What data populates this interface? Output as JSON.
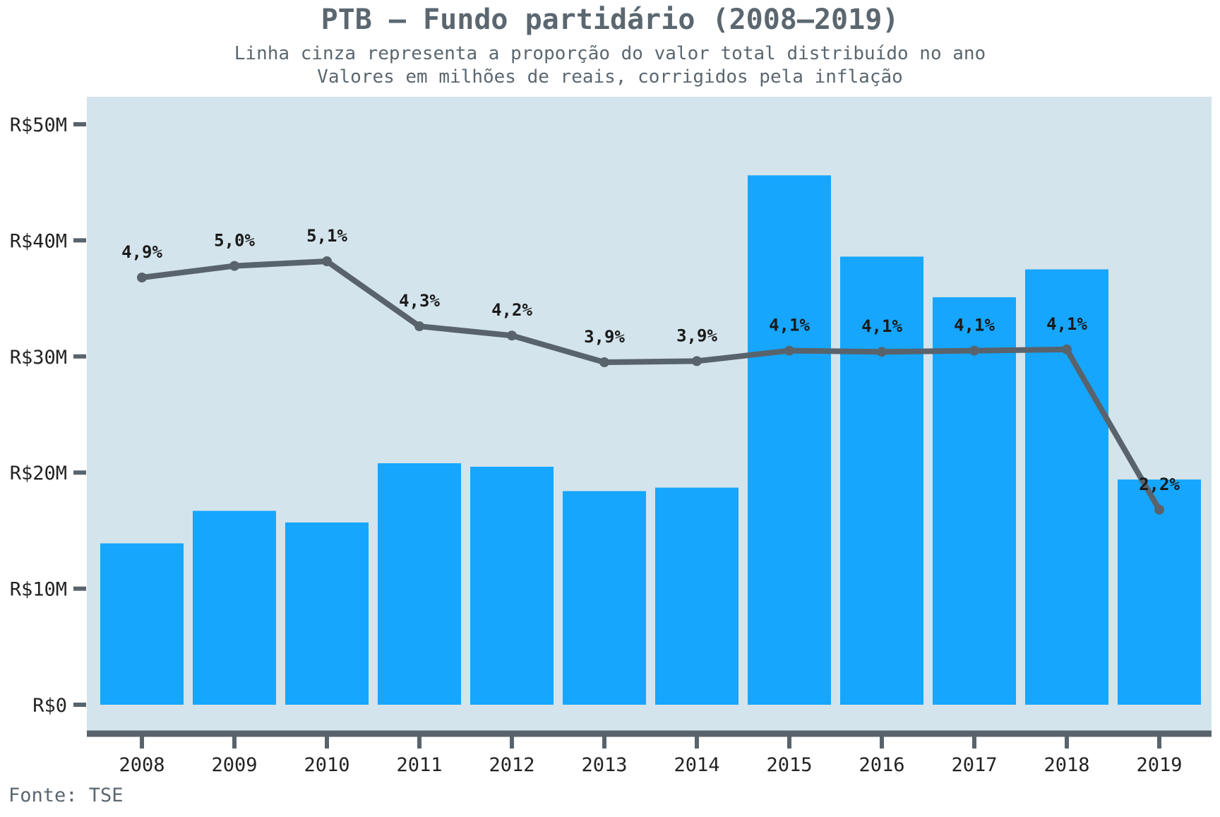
{
  "chart_data": {
    "type": "bar",
    "title": "PTB – Fundo partidário (2008–2019)",
    "subtitle_lines": [
      "Linha cinza representa a proporção do valor total distribuído no ano",
      "Valores em milhões de reais, corrigidos pela inflação"
    ],
    "source": "Fonte: TSE",
    "categories": [
      "2008",
      "2009",
      "2010",
      "2011",
      "2012",
      "2013",
      "2014",
      "2015",
      "2016",
      "2017",
      "2018",
      "2019"
    ],
    "series": [
      {
        "type": "bar",
        "values": [
          13.9,
          16.7,
          15.7,
          20.8,
          20.5,
          18.4,
          18.7,
          45.6,
          38.6,
          35.1,
          37.5,
          19.4
        ],
        "color": "#16a6fd"
      },
      {
        "type": "line",
        "values": [
          4.9,
          5.0,
          5.1,
          4.3,
          4.2,
          3.9,
          3.9,
          4.1,
          4.1,
          4.1,
          4.1,
          2.2
        ],
        "value_labels": [
          "4,9%",
          "5,0%",
          "5,1%",
          "4,3%",
          "4,2%",
          "3,9%",
          "3,9%",
          "4,1%",
          "4,1%",
          "4,1%",
          "4,1%",
          "2,2%"
        ],
        "line_y_millions": [
          36.8,
          37.8,
          38.2,
          32.6,
          31.8,
          29.5,
          29.6,
          30.5,
          30.4,
          30.5,
          30.6,
          16.8
        ],
        "color": "#59636b"
      }
    ],
    "ylim": [
      -2.5,
      52.5
    ],
    "yticks": [
      0,
      10,
      20,
      30,
      40,
      50
    ],
    "ytick_labels": [
      "R$0",
      "R$10M",
      "R$20M",
      "R$30M",
      "R$40M",
      "R$50M"
    ],
    "panel_color": "#d4e4ec",
    "axis_color": "#59636b",
    "grid": false,
    "legend": "none"
  }
}
